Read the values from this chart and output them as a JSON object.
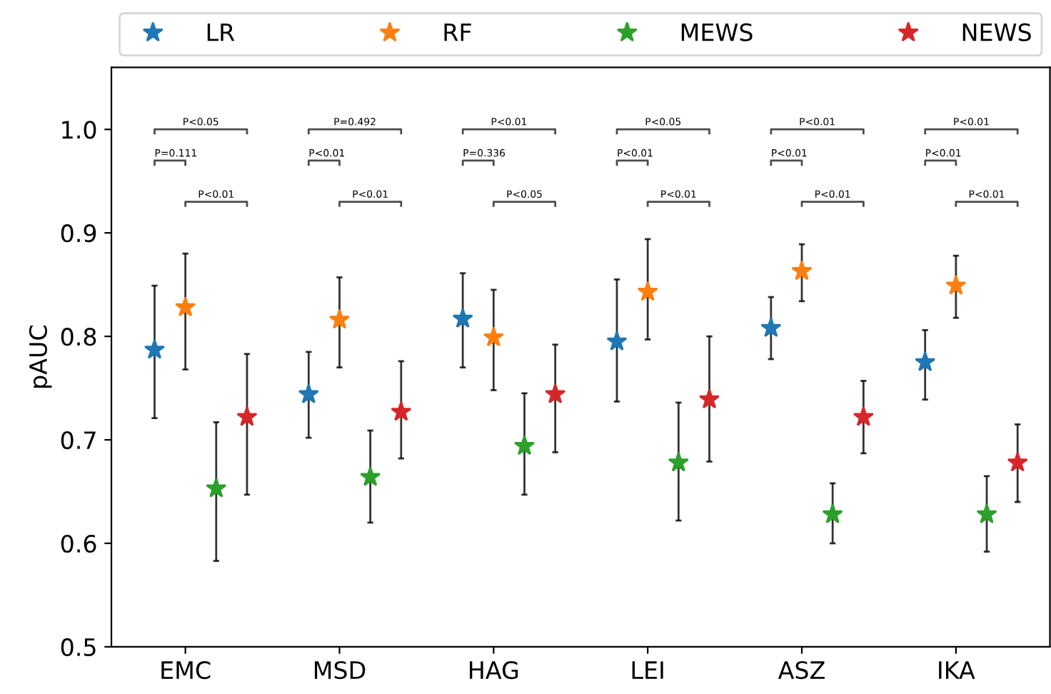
{
  "chart_data": {
    "type": "scatter",
    "ylabel": "pAUC",
    "categories": [
      "EMC",
      "MSD",
      "HAG",
      "LEI",
      "ASZ",
      "IKA"
    ],
    "series": [
      {
        "name": "LR",
        "color": "#1f77b4",
        "values": [
          0.787,
          0.744,
          0.817,
          0.795,
          0.808,
          0.775
        ],
        "errors": [
          [
            0.721,
            0.849
          ],
          [
            0.702,
            0.785
          ],
          [
            0.77,
            0.861
          ],
          [
            0.737,
            0.855
          ],
          [
            0.778,
            0.838
          ],
          [
            0.739,
            0.806
          ]
        ]
      },
      {
        "name": "RF",
        "color": "#ff7f0e",
        "values": [
          0.828,
          0.816,
          0.799,
          0.843,
          0.863,
          0.849
        ],
        "errors": [
          [
            0.768,
            0.88
          ],
          [
            0.77,
            0.857
          ],
          [
            0.748,
            0.845
          ],
          [
            0.797,
            0.894
          ],
          [
            0.834,
            0.889
          ],
          [
            0.818,
            0.878
          ]
        ]
      },
      {
        "name": "MEWS",
        "color": "#2ca02c",
        "values": [
          0.653,
          0.664,
          0.694,
          0.678,
          0.628,
          0.628
        ],
        "errors": [
          [
            0.583,
            0.717
          ],
          [
            0.62,
            0.709
          ],
          [
            0.647,
            0.745
          ],
          [
            0.622,
            0.736
          ],
          [
            0.6,
            0.658
          ],
          [
            0.592,
            0.665
          ]
        ]
      },
      {
        "name": "NEWS",
        "color": "#d62728",
        "values": [
          0.722,
          0.727,
          0.744,
          0.739,
          0.722,
          0.678
        ],
        "errors": [
          [
            0.647,
            0.783
          ],
          [
            0.682,
            0.776
          ],
          [
            0.688,
            0.792
          ],
          [
            0.679,
            0.8
          ],
          [
            0.687,
            0.757
          ],
          [
            0.64,
            0.715
          ]
        ]
      }
    ],
    "ylim": [
      0.5,
      1.06
    ],
    "yticks": [
      0.5,
      0.6,
      0.7,
      0.8,
      0.9,
      {
        "value": 1.0,
        "label": "1.0"
      }
    ],
    "marker": "star",
    "legend": "top",
    "grid": false,
    "annotations": [
      "P<0.05",
      "P=0.111",
      "P<0.01",
      "P=0.492",
      "P<0.01",
      "P<0.01",
      "P<0.01",
      "P=0.336",
      "P<0.05",
      "P<0.05",
      "P<0.01",
      "P<0.01",
      "P<0.01",
      "P<0.01",
      "P<0.01",
      "P<0.01",
      "P<0.01",
      "P<0.01"
    ]
  }
}
